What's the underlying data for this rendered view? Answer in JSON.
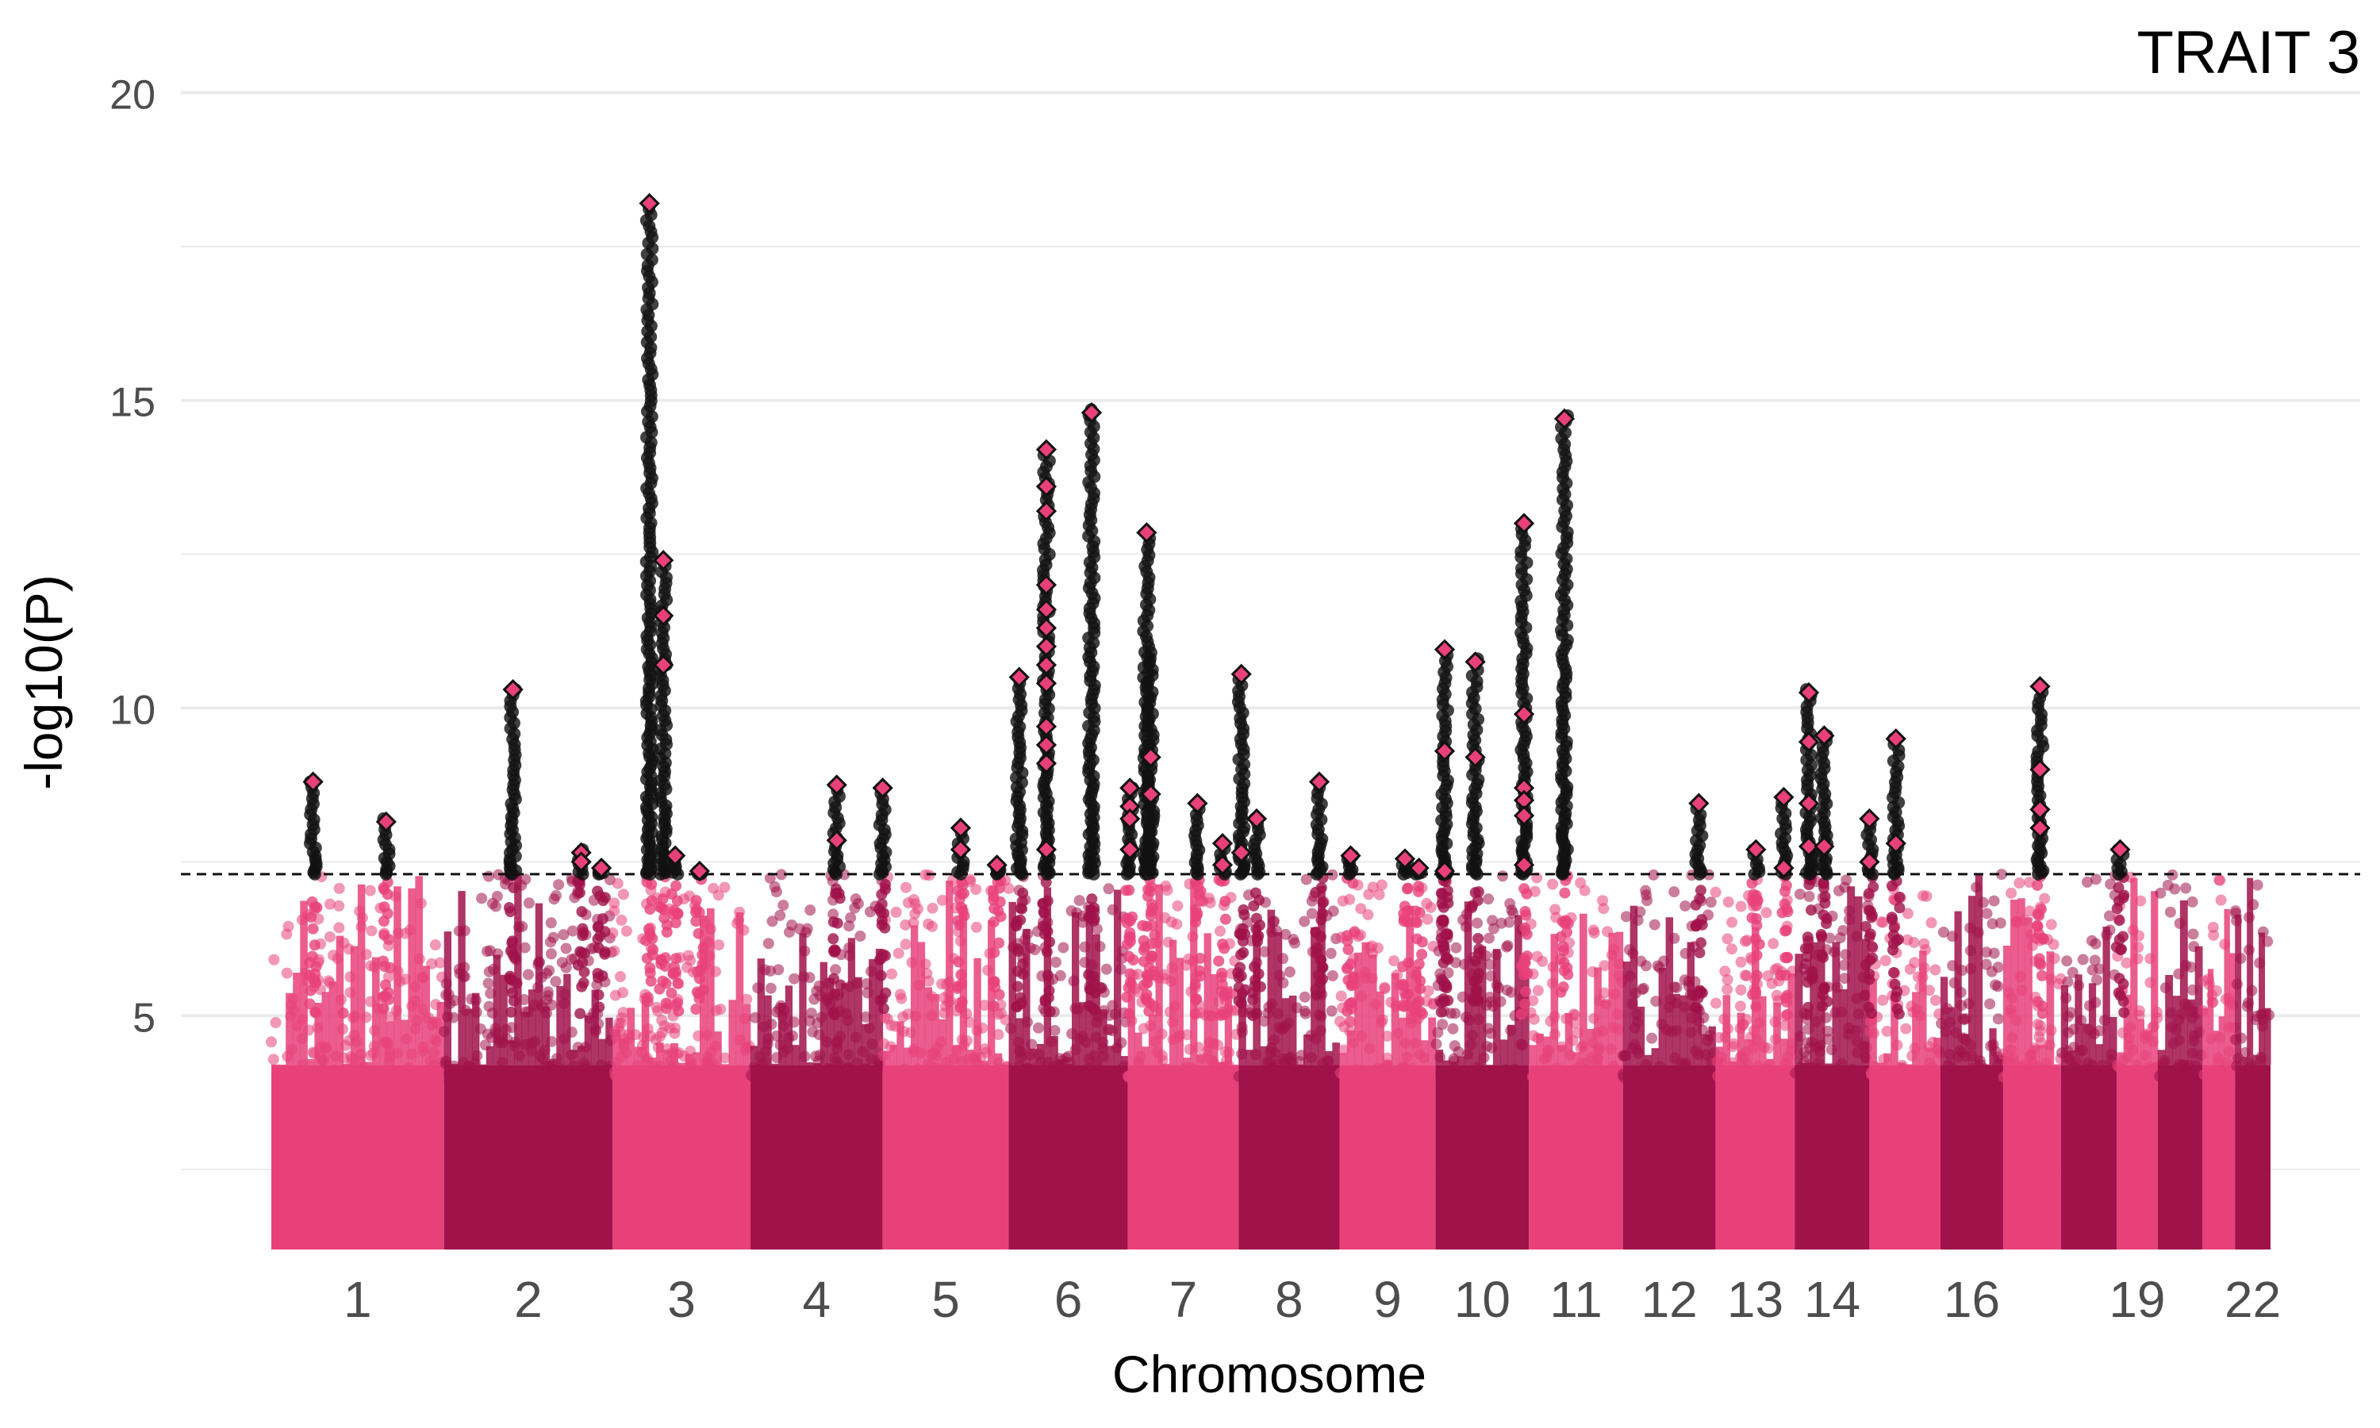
{
  "chart_data": {
    "type": "scatter",
    "subtype": "manhattan",
    "title": "TRAIT 3",
    "xlabel": "Chromosome",
    "ylabel": "-log10(P)",
    "ylim": [
      1.2,
      20.5
    ],
    "y_ticks": [
      5,
      10,
      15,
      20
    ],
    "grid": "horizontal major and minor",
    "legend": "none",
    "significance_threshold": 7.3,
    "colors": {
      "odd_chromosomes": "#e8417a",
      "even_chromosomes": "#a0124a",
      "significant_points": "#111111",
      "lead_markers": "#e8417a",
      "threshold_line": "#111111",
      "grid": "#ebebeb"
    },
    "chromosome_tick_labels": [
      "1",
      "2",
      "3",
      "4",
      "5",
      "6",
      "7",
      "8",
      "9",
      "10",
      "11",
      "12",
      "13",
      "14",
      "16",
      "19",
      "22"
    ],
    "chromosomes": [
      {
        "chr": 1,
        "start": 0,
        "end": 248,
        "max_background": 7.3
      },
      {
        "chr": 2,
        "start": 248,
        "end": 490,
        "max_background": 7.3
      },
      {
        "chr": 3,
        "start": 490,
        "end": 688,
        "max_background": 7.2
      },
      {
        "chr": 4,
        "start": 688,
        "end": 878,
        "max_background": 7.3
      },
      {
        "chr": 5,
        "start": 878,
        "end": 1059,
        "max_background": 7.3
      },
      {
        "chr": 6,
        "start": 1059,
        "end": 1230,
        "max_background": 7.3
      },
      {
        "chr": 7,
        "start": 1230,
        "end": 1389,
        "max_background": 7.3
      },
      {
        "chr": 8,
        "start": 1389,
        "end": 1534,
        "max_background": 7.3
      },
      {
        "chr": 9,
        "start": 1534,
        "end": 1672,
        "max_background": 7.2
      },
      {
        "chr": 10,
        "start": 1672,
        "end": 1806,
        "max_background": 7.3
      },
      {
        "chr": 11,
        "start": 1806,
        "end": 1941,
        "max_background": 7.3
      },
      {
        "chr": 12,
        "start": 1941,
        "end": 2074,
        "max_background": 7.3
      },
      {
        "chr": 13,
        "start": 2074,
        "end": 2188,
        "max_background": 7.3
      },
      {
        "chr": 14,
        "start": 2188,
        "end": 2295,
        "max_background": 7.3
      },
      {
        "chr": 15,
        "start": 2295,
        "end": 2397,
        "max_background": 7.3
      },
      {
        "chr": 16,
        "start": 2397,
        "end": 2487,
        "max_background": 7.3
      },
      {
        "chr": 17,
        "start": 2487,
        "end": 2570,
        "max_background": 7.3
      },
      {
        "chr": 18,
        "start": 2570,
        "end": 2650,
        "max_background": 7.3
      },
      {
        "chr": 19,
        "start": 2650,
        "end": 2709,
        "max_background": 7.3
      },
      {
        "chr": 20,
        "start": 2709,
        "end": 2773,
        "max_background": 7.3
      },
      {
        "chr": 21,
        "start": 2773,
        "end": 2820,
        "max_background": 7.3
      },
      {
        "chr": 22,
        "start": 2820,
        "end": 2871,
        "max_background": 7.3
      }
    ],
    "peaks": [
      {
        "chr": 1,
        "pos": 60,
        "max": 8.8,
        "lead": [
          8.8
        ]
      },
      {
        "chr": 1,
        "pos": 165,
        "max": 8.2,
        "lead": [
          8.15
        ]
      },
      {
        "chr": 2,
        "pos": 347,
        "max": 10.3,
        "lead": [
          10.3
        ]
      },
      {
        "chr": 2,
        "pos": 445,
        "max": 7.7,
        "lead": [
          7.65,
          7.5
        ]
      },
      {
        "chr": 2,
        "pos": 474,
        "max": 7.4,
        "lead": [
          7.4
        ]
      },
      {
        "chr": 3,
        "pos": 543,
        "max": 18.2,
        "lead": [
          18.2
        ]
      },
      {
        "chr": 3,
        "pos": 563,
        "max": 12.4,
        "lead": [
          12.4,
          11.5,
          10.7
        ]
      },
      {
        "chr": 3,
        "pos": 580,
        "max": 7.6,
        "lead": [
          7.6
        ]
      },
      {
        "chr": 3,
        "pos": 615,
        "max": 7.35,
        "lead": [
          7.35
        ]
      },
      {
        "chr": 4,
        "pos": 812,
        "max": 8.75,
        "lead": [
          8.75,
          7.85
        ]
      },
      {
        "chr": 4,
        "pos": 878,
        "max": 8.7,
        "lead": [
          8.7
        ]
      },
      {
        "chr": 5,
        "pos": 990,
        "max": 8.05,
        "lead": [
          8.05,
          7.7
        ]
      },
      {
        "chr": 5,
        "pos": 1042,
        "max": 7.45,
        "lead": [
          7.45
        ]
      },
      {
        "chr": 6,
        "pos": 1074,
        "max": 10.5,
        "lead": [
          10.5
        ]
      },
      {
        "chr": 6,
        "pos": 1113,
        "max": 14.2,
        "lead": [
          14.2,
          13.6,
          13.2,
          12.0,
          11.6,
          11.3,
          11.0,
          10.7,
          10.4,
          9.7,
          9.4,
          9.1,
          7.7
        ]
      },
      {
        "chr": 6,
        "pos": 1178,
        "max": 14.85,
        "lead": [
          14.8
        ]
      },
      {
        "chr": 7,
        "pos": 1233,
        "max": 8.7,
        "lead": [
          8.7,
          8.4,
          8.2,
          7.7
        ]
      },
      {
        "chr": 7,
        "pos": 1257,
        "max": 12.85,
        "lead": [
          12.85
        ]
      },
      {
        "chr": 7,
        "pos": 1263,
        "max": 10.9,
        "lead": [
          9.2,
          8.6
        ]
      },
      {
        "chr": 7,
        "pos": 1330,
        "max": 8.45,
        "lead": [
          8.45
        ]
      },
      {
        "chr": 7,
        "pos": 1366,
        "max": 7.8,
        "lead": [
          7.8,
          7.45
        ]
      },
      {
        "chr": 8,
        "pos": 1393,
        "max": 10.55,
        "lead": [
          10.55,
          7.65
        ]
      },
      {
        "chr": 8,
        "pos": 1415,
        "max": 8.2,
        "lead": [
          8.2
        ]
      },
      {
        "chr": 8,
        "pos": 1505,
        "max": 8.8,
        "lead": [
          8.8
        ]
      },
      {
        "chr": 9,
        "pos": 1550,
        "max": 7.6,
        "lead": [
          7.6
        ]
      },
      {
        "chr": 9,
        "pos": 1628,
        "max": 7.55,
        "lead": [
          7.55
        ]
      },
      {
        "chr": 9,
        "pos": 1648,
        "max": 7.4,
        "lead": [
          7.4
        ]
      },
      {
        "chr": 10,
        "pos": 1685,
        "max": 10.95,
        "lead": [
          10.95,
          9.3
        ]
      },
      {
        "chr": 10,
        "pos": 1685,
        "max": 7.35,
        "lead": [
          7.35
        ]
      },
      {
        "chr": 10,
        "pos": 1729,
        "max": 10.8,
        "lead": [
          10.75,
          9.2
        ]
      },
      {
        "chr": 11,
        "pos": 1799,
        "max": 13.0,
        "lead": [
          13.0,
          9.9,
          8.7,
          8.5,
          8.25,
          7.45
        ]
      },
      {
        "chr": 11,
        "pos": 1857,
        "max": 14.75,
        "lead": [
          14.7
        ]
      },
      {
        "chr": 12,
        "pos": 2050,
        "max": 8.45,
        "lead": [
          8.45
        ]
      },
      {
        "chr": 13,
        "pos": 2132,
        "max": 7.7,
        "lead": [
          7.7
        ]
      },
      {
        "chr": 13,
        "pos": 2172,
        "max": 8.55,
        "lead": [
          8.55,
          7.4
        ]
      },
      {
        "chr": 14,
        "pos": 2208,
        "max": 10.3,
        "lead": [
          10.25,
          9.45,
          8.45,
          7.75
        ]
      },
      {
        "chr": 14,
        "pos": 2230,
        "max": 9.55,
        "lead": [
          9.55,
          7.75
        ]
      },
      {
        "chr": 16,
        "pos": 2295,
        "max": 8.2,
        "lead": [
          8.2,
          7.5
        ]
      },
      {
        "chr": 16,
        "pos": 2333,
        "max": 9.5,
        "lead": [
          9.5,
          7.8
        ]
      },
      {
        "chr": 19,
        "pos": 2540,
        "max": 10.35,
        "lead": [
          10.35,
          9.0,
          8.35,
          8.05
        ]
      },
      {
        "chr": 22,
        "pos": 2655,
        "max": 7.7,
        "lead": [
          7.7
        ]
      }
    ]
  }
}
